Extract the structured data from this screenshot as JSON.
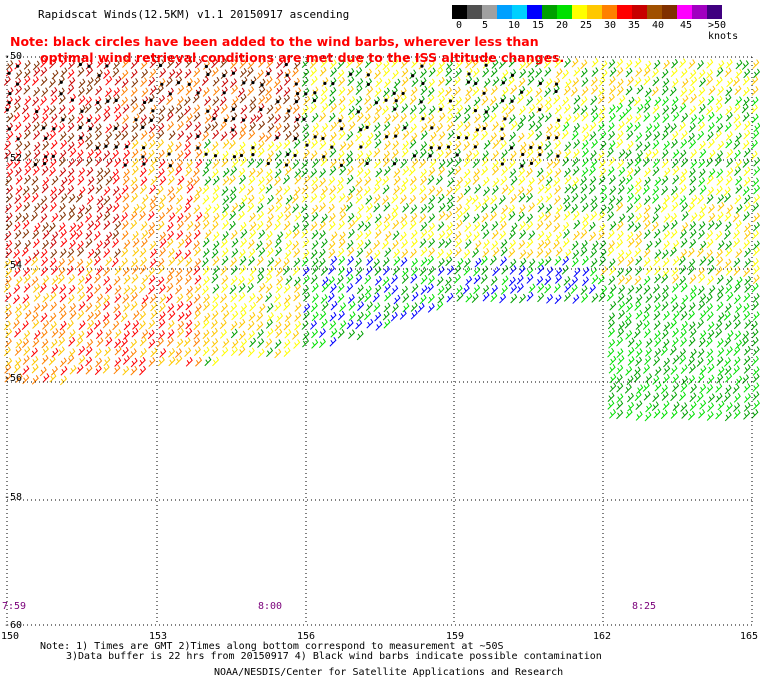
{
  "title": "Rapidscat Winds(12.5KM) v1.1 20150917 ascending",
  "note": {
    "line1": "Note: black circles have been added to the wind barbs, wherever less than",
    "line2": "optimal wind retrieval conditions are met due to the ISS altitude changes."
  },
  "legend": {
    "colors": [
      "#000000",
      "#505050",
      "#a0a0a0",
      "#00a0ff",
      "#00d0ff",
      "#0000ff",
      "#00a000",
      "#00e000",
      "#ffff00",
      "#ffc800",
      "#ff8000",
      "#ff0000",
      "#c80000",
      "#a05000",
      "#803000",
      "#ff00ff",
      "#a000c0",
      "#400080"
    ],
    "labels": [
      "0",
      "5",
      "10",
      "15",
      "20",
      "25",
      "30",
      "35",
      "40",
      "45",
      ">50 knots"
    ]
  },
  "map": {
    "lat_labels": [
      "-50",
      "-52",
      "-54",
      "-56",
      "-58",
      "-60"
    ],
    "lon_labels": [
      "150",
      "153",
      "156",
      "159",
      "162",
      "165"
    ],
    "time_labels": [
      "7:59",
      "8:00",
      "8:25"
    ]
  },
  "footer": {
    "line1": "Note: 1) Times are GMT 2)Times along bottom correspond to measurement at ~50S",
    "line2": "3)Data buffer is 22 hrs from 20150917 4) Black wind barbs indicate possible contamination",
    "line3": "NOAA/NESDIS/Center for Satellite Applications and Research"
  }
}
